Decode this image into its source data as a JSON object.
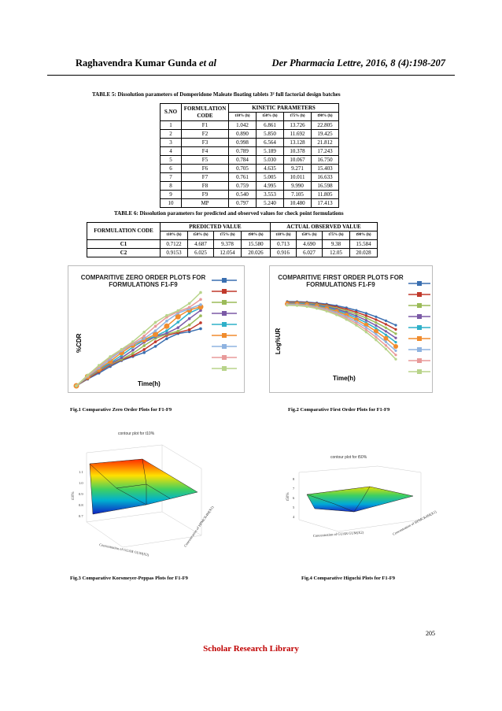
{
  "header": {
    "author": "Raghavendra Kumar Gunda",
    "author_suffix": "et al",
    "journal": "Der Pharmacia Lettre, 2016, 8 (4):198-207"
  },
  "table5": {
    "caption": "TABLE 5: Dissolution parameters of Domperidone Maleate floating  tablets 3² full factorial design batches",
    "h_sno": "S.NO",
    "h_code": "FORMULATION CODE",
    "h_kinetic": "KINETIC PARAMETERS",
    "h_params": [
      "t10% (h)",
      "t50% (h)",
      "t75% (h)",
      "t90% (h)"
    ],
    "rows": [
      [
        "1",
        "F1",
        "1.042",
        "6.861",
        "13.726",
        "22.805"
      ],
      [
        "2",
        "F2",
        "0.890",
        "5.850",
        "11.692",
        "19.425"
      ],
      [
        "3",
        "F3",
        "0.998",
        "6.564",
        "13.128",
        "21.812"
      ],
      [
        "4",
        "F4",
        "0.789",
        "5.189",
        "10.378",
        "17.243"
      ],
      [
        "5",
        "F5",
        "0.784",
        "5.030",
        "10.067",
        "16.750"
      ],
      [
        "6",
        "F6",
        "0.705",
        "4.635",
        "9.271",
        "15.403"
      ],
      [
        "7",
        "F7",
        "0.761",
        "5.005",
        "10.011",
        "16.633"
      ],
      [
        "8",
        "F8",
        "0.759",
        "4.995",
        "9.990",
        "16.598"
      ],
      [
        "9",
        "F9",
        "0.540",
        "3.553",
        "7.105",
        "11.805"
      ],
      [
        "10",
        "MP",
        "0.797",
        "5.240",
        "10.480",
        "17.413"
      ]
    ]
  },
  "table6": {
    "caption": "TABLE 6: Dissolution parameters for predicted and observed values for check point formulations",
    "h_code": "FORMULATION CODE",
    "h_pred": "PREDICTED VALUE",
    "h_obs": "ACTUAL OBSERVED VALUE",
    "h_params": [
      "t10% (h)",
      "t50% (h)",
      "t75% (h)",
      "t90% (h)",
      "t10% (h)",
      "t50% (h)",
      "t75% (h)",
      "t90% (h)"
    ],
    "rows": [
      [
        "C1",
        "0.7122",
        "4.687",
        "9.378",
        "15.580",
        "0.713",
        "4.690",
        "9.38",
        "15.584"
      ],
      [
        "C2",
        "0.9153",
        "6.025",
        "12.054",
        "20.026",
        "0.916",
        "6.027",
        "12.05",
        "20.028"
      ]
    ]
  },
  "fig1": {
    "title": "COMPARITIVE ZERO ORDER PLOTS FOR FORMULATIONS F1-F9",
    "ylabel": "%CDR",
    "xlabel": "Time(h)",
    "caption": "Fig.1 Comparative Zero Order Plots for F1-F9"
  },
  "fig2": {
    "title": "COMPARITIVE FIRST ORDER PLOTS FOR FORMULATIONS F1-F9",
    "ylabel": "Log%UR",
    "xlabel": "Time(h)",
    "caption": "Fig.2 Comparative First Order Plots for F1-F9"
  },
  "fig3": {
    "title": "contour plot for t10%",
    "zlabel": "t10%",
    "xlabel": "Concentration of GUAR GUM(X2)",
    "ylabel": "Concentration of HPMCK4M(X1)",
    "caption": "Fig.3 Comparative Korsmeyer-Peppas Plots for F1-F9"
  },
  "fig4": {
    "title": "contour plot for t50%",
    "zlabel": "t50%",
    "xlabel": "Concentration of GUAR GUM(X2)",
    "ylabel": "Concentration of HPMCK4M(X1)",
    "caption": "Fig.4 Comparative Higuchi Plots for F1-F9"
  },
  "series_colors": [
    "#3a6fb0",
    "#c0392b",
    "#9bbb59",
    "#7b5aa6",
    "#2fb0c9",
    "#f08c2e",
    "#8fb3e0",
    "#e89a9a",
    "#b8d48a"
  ],
  "page_number": "205",
  "footer": "Scholar Research Library"
}
